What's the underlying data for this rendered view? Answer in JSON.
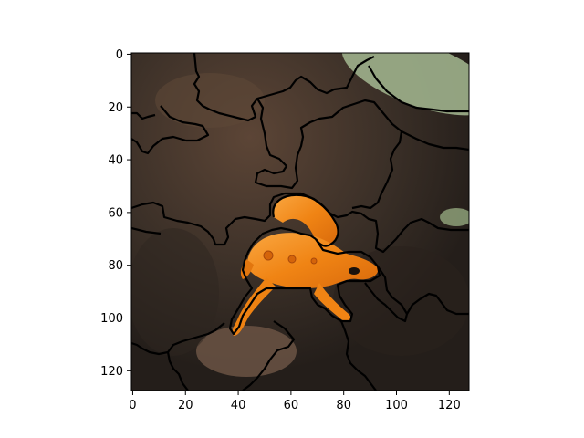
{
  "chart_data": {
    "type": "image",
    "x_ticks": [
      0,
      20,
      40,
      60,
      80,
      100,
      120
    ],
    "y_ticks": [
      0,
      20,
      40,
      60,
      80,
      100,
      120
    ],
    "xlim": [
      -0.5,
      127.5
    ],
    "ylim": [
      127.5,
      -0.5
    ],
    "image_size": [
      128,
      128
    ],
    "image_subject": "orange salamander (eft) on dark forest floor with segmentation boundaries",
    "colors": {
      "soil_dark": "#2d2620",
      "soil_mid": "#4a3d32",
      "leaf_brown": "#6b5444",
      "moss_green": "#9fb18c",
      "salamander_orange": "#f07f12",
      "salamander_light": "#f8a23a",
      "boundary": "#000000"
    }
  }
}
